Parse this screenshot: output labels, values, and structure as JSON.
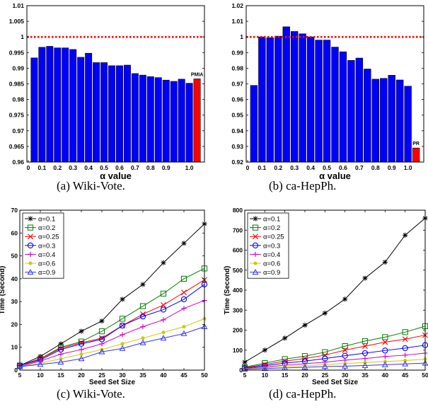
{
  "chart_data": [
    {
      "id": "a",
      "type": "bar",
      "caption": "(a) Wiki-Vote.",
      "xlabel": "α value",
      "ylabel": "",
      "ylim": [
        0.96,
        1.01
      ],
      "yticks": [
        "0.96",
        "0.965",
        "0.97",
        "0.975",
        "0.98",
        "0.985",
        "0.99",
        "0.995",
        "1",
        "1.005",
        "1.01"
      ],
      "xticks": [
        "0",
        "0.1",
        "0.2",
        "0.3",
        "0.4",
        "0.5",
        "0.6",
        "0.7",
        "0.8",
        "0.9",
        "1.0"
      ],
      "values": [
        0.9933,
        0.9967,
        0.997,
        0.9965,
        0.9965,
        0.996,
        0.9935,
        0.9948,
        0.9918,
        0.9918,
        0.9908,
        0.9908,
        0.991,
        0.9883,
        0.9878,
        0.9873,
        0.987,
        0.9862,
        0.9858,
        0.9865,
        0.9852
      ],
      "reference_line": 1.0,
      "highlight_label": "PMIA",
      "highlight_value": 0.9866,
      "bar_color": "#0000ff",
      "highlight_color": "#ff0000",
      "reference_color": "#ff0000"
    },
    {
      "id": "b",
      "type": "bar",
      "caption": "(b) ca-HepPh.",
      "xlabel": "α value",
      "ylabel": "",
      "ylim": [
        0.92,
        1.02
      ],
      "yticks": [
        "0.92",
        "0.93",
        "0.94",
        "0.95",
        "0.96",
        "0.97",
        "0.98",
        "0.99",
        "1",
        "1.01",
        "1.02"
      ],
      "xticks": [
        "0",
        "0.1",
        "0.2",
        "0.3",
        "0.4",
        "0.5",
        "0.6",
        "0.7",
        "0.8",
        "0.9",
        "1.0"
      ],
      "values": [
        0.969,
        1.0,
        0.9995,
        1.0005,
        1.0065,
        1.0035,
        1.002,
        1.0,
        0.998,
        0.998,
        0.9935,
        0.9905,
        0.985,
        0.9865,
        0.9795,
        0.973,
        0.9735,
        0.9755,
        0.9725,
        0.9685
      ],
      "reference_line": 1.0,
      "highlight_label": "PR",
      "highlight_value": 0.929,
      "bar_color": "#0000ff",
      "highlight_color": "#ff0000",
      "reference_color": "#ff0000"
    },
    {
      "id": "c",
      "type": "line",
      "caption": "(c) Wiki-Vote.",
      "xlabel": "Seed Set Size",
      "ylabel": "Time (Second)",
      "xlim": [
        5,
        50
      ],
      "ylim": [
        0,
        70
      ],
      "x": [
        5,
        10,
        15,
        20,
        25,
        30,
        35,
        40,
        45,
        50
      ],
      "xticks": [
        "5",
        "10",
        "15",
        "20",
        "25",
        "30",
        "35",
        "40",
        "45",
        "50"
      ],
      "yticks": [
        "0",
        "10",
        "20",
        "30",
        "40",
        "50",
        "60",
        "70"
      ],
      "legend_position": "top-left",
      "series": [
        {
          "name": "α=0.1",
          "color": "#000000",
          "marker": "star",
          "values": [
            2.0,
            6.0,
            11.5,
            17.0,
            21.5,
            31.0,
            37.5,
            47.0,
            55.5,
            64.0
          ]
        },
        {
          "name": "α=0.2",
          "color": "#008000",
          "marker": "square",
          "values": [
            2.0,
            5.0,
            10.0,
            12.5,
            17.0,
            22.5,
            28.0,
            33.5,
            40.0,
            44.5
          ]
        },
        {
          "name": "α=0.25",
          "color": "#ff0000",
          "marker": "x",
          "values": [
            2.0,
            5.0,
            9.5,
            12.0,
            14.0,
            19.5,
            24.5,
            28.5,
            34.0,
            39.5
          ]
        },
        {
          "name": "α=0.3",
          "color": "#0000ff",
          "marker": "circle",
          "values": [
            2.0,
            4.5,
            9.0,
            11.5,
            13.5,
            19.5,
            23.5,
            26.5,
            31.0,
            37.5
          ]
        },
        {
          "name": "α=0.4",
          "color": "#cc00cc",
          "marker": "plus",
          "values": [
            1.5,
            4.0,
            7.0,
            9.0,
            11.5,
            15.5,
            19.0,
            22.0,
            27.0,
            30.5
          ]
        },
        {
          "name": "α=0.6",
          "color": "#cccc00",
          "marker": "dot",
          "values": [
            1.5,
            3.0,
            5.0,
            7.0,
            9.0,
            11.5,
            14.0,
            16.5,
            19.0,
            22.5
          ]
        },
        {
          "name": "α=0.9",
          "color": "#3333ff",
          "marker": "triangle",
          "values": [
            1.5,
            2.5,
            3.5,
            5.0,
            8.0,
            9.5,
            12.0,
            14.0,
            16.0,
            19.0
          ]
        }
      ]
    },
    {
      "id": "d",
      "type": "line",
      "caption": "(d) ca-HepPh.",
      "xlabel": "Seed Set Size",
      "ylabel": "Time (Second)",
      "xlim": [
        5,
        50
      ],
      "ylim": [
        0,
        800
      ],
      "x": [
        5,
        10,
        15,
        20,
        25,
        30,
        35,
        40,
        45,
        50
      ],
      "xticks": [
        "5",
        "10",
        "15",
        "20",
        "25",
        "30",
        "35",
        "40",
        "45",
        "50"
      ],
      "yticks": [
        "0",
        "100",
        "200",
        "300",
        "400",
        "500",
        "600",
        "700",
        "800"
      ],
      "legend_position": "top-left",
      "series": [
        {
          "name": "α=0.1",
          "color": "#000000",
          "marker": "star",
          "values": [
            40,
            100,
            160,
            225,
            285,
            355,
            460,
            540,
            675,
            760
          ]
        },
        {
          "name": "α=0.2",
          "color": "#008000",
          "marker": "square",
          "values": [
            15,
            35,
            55,
            70,
            90,
            120,
            145,
            165,
            190,
            220
          ]
        },
        {
          "name": "α=0.25",
          "color": "#ff0000",
          "marker": "x",
          "values": [
            12,
            28,
            45,
            58,
            75,
            100,
            120,
            140,
            155,
            175
          ]
        },
        {
          "name": "α=0.3",
          "color": "#0000ff",
          "marker": "circle",
          "values": [
            10,
            22,
            35,
            45,
            58,
            72,
            85,
            98,
            110,
            125
          ]
        },
        {
          "name": "α=0.4",
          "color": "#cc00cc",
          "marker": "plus",
          "values": [
            8,
            16,
            25,
            32,
            40,
            50,
            58,
            68,
            75,
            85
          ]
        },
        {
          "name": "α=0.6",
          "color": "#cccc00",
          "marker": "dot",
          "values": [
            6,
            12,
            18,
            22,
            28,
            33,
            38,
            43,
            48,
            55
          ]
        },
        {
          "name": "α=0.9",
          "color": "#3333ff",
          "marker": "triangle",
          "values": [
            5,
            8,
            11,
            14,
            18,
            20,
            23,
            27,
            31,
            35
          ]
        }
      ]
    }
  ]
}
